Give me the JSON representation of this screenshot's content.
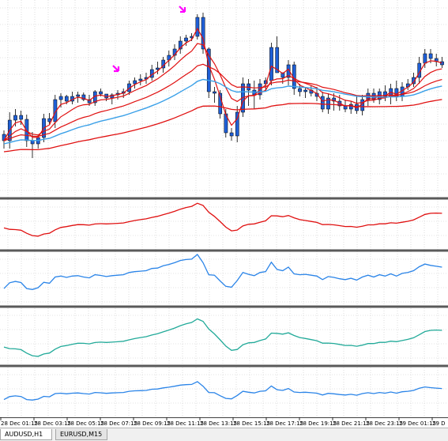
{
  "chart_data": {
    "type": "candlestick",
    "x_labels": [
      "28 Dec 01:15",
      "28 Dec 03:15",
      "28 Dec 05:15",
      "28 Dec 07:15",
      "28 Dec 09:15",
      "28 Dec 11:15",
      "28 Dec 13:15",
      "28 Dec 15:15",
      "28 Dec 17:15",
      "28 Dec 19:15",
      "28 Dec 21:15",
      "28 Dec 23:15",
      "29 Dec 01:15",
      "29 D"
    ],
    "candles": [
      [
        168,
        163,
        186,
        176
      ],
      [
        176,
        140,
        186,
        150
      ],
      [
        150,
        136,
        158,
        144
      ],
      [
        144,
        138,
        156,
        149
      ],
      [
        149,
        143,
        184,
        176
      ],
      [
        176,
        165,
        198,
        180
      ],
      [
        180,
        168,
        186,
        172
      ],
      [
        172,
        142,
        178,
        148
      ],
      [
        148,
        141,
        156,
        152
      ],
      [
        152,
        118,
        160,
        124
      ],
      [
        124,
        116,
        134,
        120
      ],
      [
        120,
        118,
        130,
        126
      ],
      [
        126,
        114,
        130,
        120
      ],
      [
        120,
        114,
        128,
        118
      ],
      [
        118,
        115,
        126,
        124
      ],
      [
        124,
        118,
        132,
        128
      ],
      [
        128,
        112,
        132,
        114
      ],
      [
        114,
        110,
        120,
        117
      ],
      [
        117,
        120,
        126,
        122
      ],
      [
        122,
        116,
        130,
        118
      ],
      [
        118,
        112,
        124,
        116
      ],
      [
        116,
        110,
        122,
        114
      ],
      [
        114,
        100,
        118,
        104
      ],
      [
        104,
        96,
        110,
        100
      ],
      [
        100,
        92,
        106,
        98
      ],
      [
        98,
        90,
        104,
        96
      ],
      [
        96,
        80,
        100,
        86
      ],
      [
        86,
        76,
        92,
        84
      ],
      [
        84,
        70,
        90,
        74
      ],
      [
        74,
        62,
        82,
        68
      ],
      [
        68,
        54,
        74,
        60
      ],
      [
        60,
        44,
        66,
        50
      ],
      [
        50,
        42,
        56,
        46
      ],
      [
        46,
        40,
        50,
        44
      ],
      [
        44,
        16,
        48,
        20
      ],
      [
        20,
        14,
        66,
        60
      ],
      [
        60,
        58,
        122,
        114
      ],
      [
        114,
        108,
        128,
        116
      ],
      [
        116,
        112,
        148,
        142
      ],
      [
        142,
        136,
        172,
        166
      ],
      [
        166,
        160,
        176,
        170
      ],
      [
        170,
        132,
        178,
        140
      ],
      [
        140,
        96,
        146,
        104
      ],
      [
        104,
        98,
        132,
        112
      ],
      [
        112,
        100,
        136,
        118
      ],
      [
        118,
        98,
        124,
        104
      ],
      [
        104,
        96,
        114,
        100
      ],
      [
        100,
        52,
        106,
        58
      ],
      [
        58,
        44,
        84,
        90
      ],
      [
        90,
        92,
        104,
        96
      ],
      [
        96,
        74,
        106,
        80
      ],
      [
        80,
        76,
        118,
        110
      ],
      [
        110,
        104,
        120,
        114
      ],
      [
        114,
        108,
        122,
        112
      ],
      [
        112,
        106,
        120,
        116
      ],
      [
        116,
        108,
        126,
        120
      ],
      [
        120,
        114,
        140,
        136
      ],
      [
        136,
        116,
        142,
        122
      ],
      [
        122,
        116,
        138,
        126
      ],
      [
        126,
        118,
        138,
        132
      ],
      [
        132,
        124,
        140,
        136
      ],
      [
        136,
        126,
        142,
        130
      ],
      [
        130,
        120,
        142,
        138
      ],
      [
        138,
        118,
        144,
        124
      ],
      [
        124,
        110,
        132,
        116
      ],
      [
        116,
        110,
        128,
        124
      ],
      [
        124,
        110,
        130,
        114
      ],
      [
        114,
        106,
        126,
        120
      ],
      [
        120,
        104,
        130,
        110
      ],
      [
        110,
        100,
        126,
        120
      ],
      [
        120,
        102,
        126,
        108
      ],
      [
        108,
        98,
        112,
        104
      ],
      [
        104,
        90,
        108,
        96
      ],
      [
        96,
        70,
        104,
        78
      ],
      [
        78,
        60,
        84,
        66
      ],
      [
        66,
        60,
        78,
        72
      ],
      [
        72,
        66,
        82,
        76
      ],
      [
        76,
        70,
        84,
        80
      ]
    ]
  },
  "tabs": [
    {
      "label": "AUDUSD,H1"
    },
    {
      "label": "EURUSD,M15"
    }
  ],
  "colors": {
    "grid": "#c8c8c8",
    "candle": "#1f5fd6",
    "ma": "#e01010",
    "ma_blue": "#3aa0e8",
    "arrow": "#ff00ff",
    "ind1": "#e01010",
    "ind2": "#2a84e8",
    "ind3": "#22aa99",
    "ind4": "#2a84e8",
    "separator": "#5a5a5a"
  }
}
